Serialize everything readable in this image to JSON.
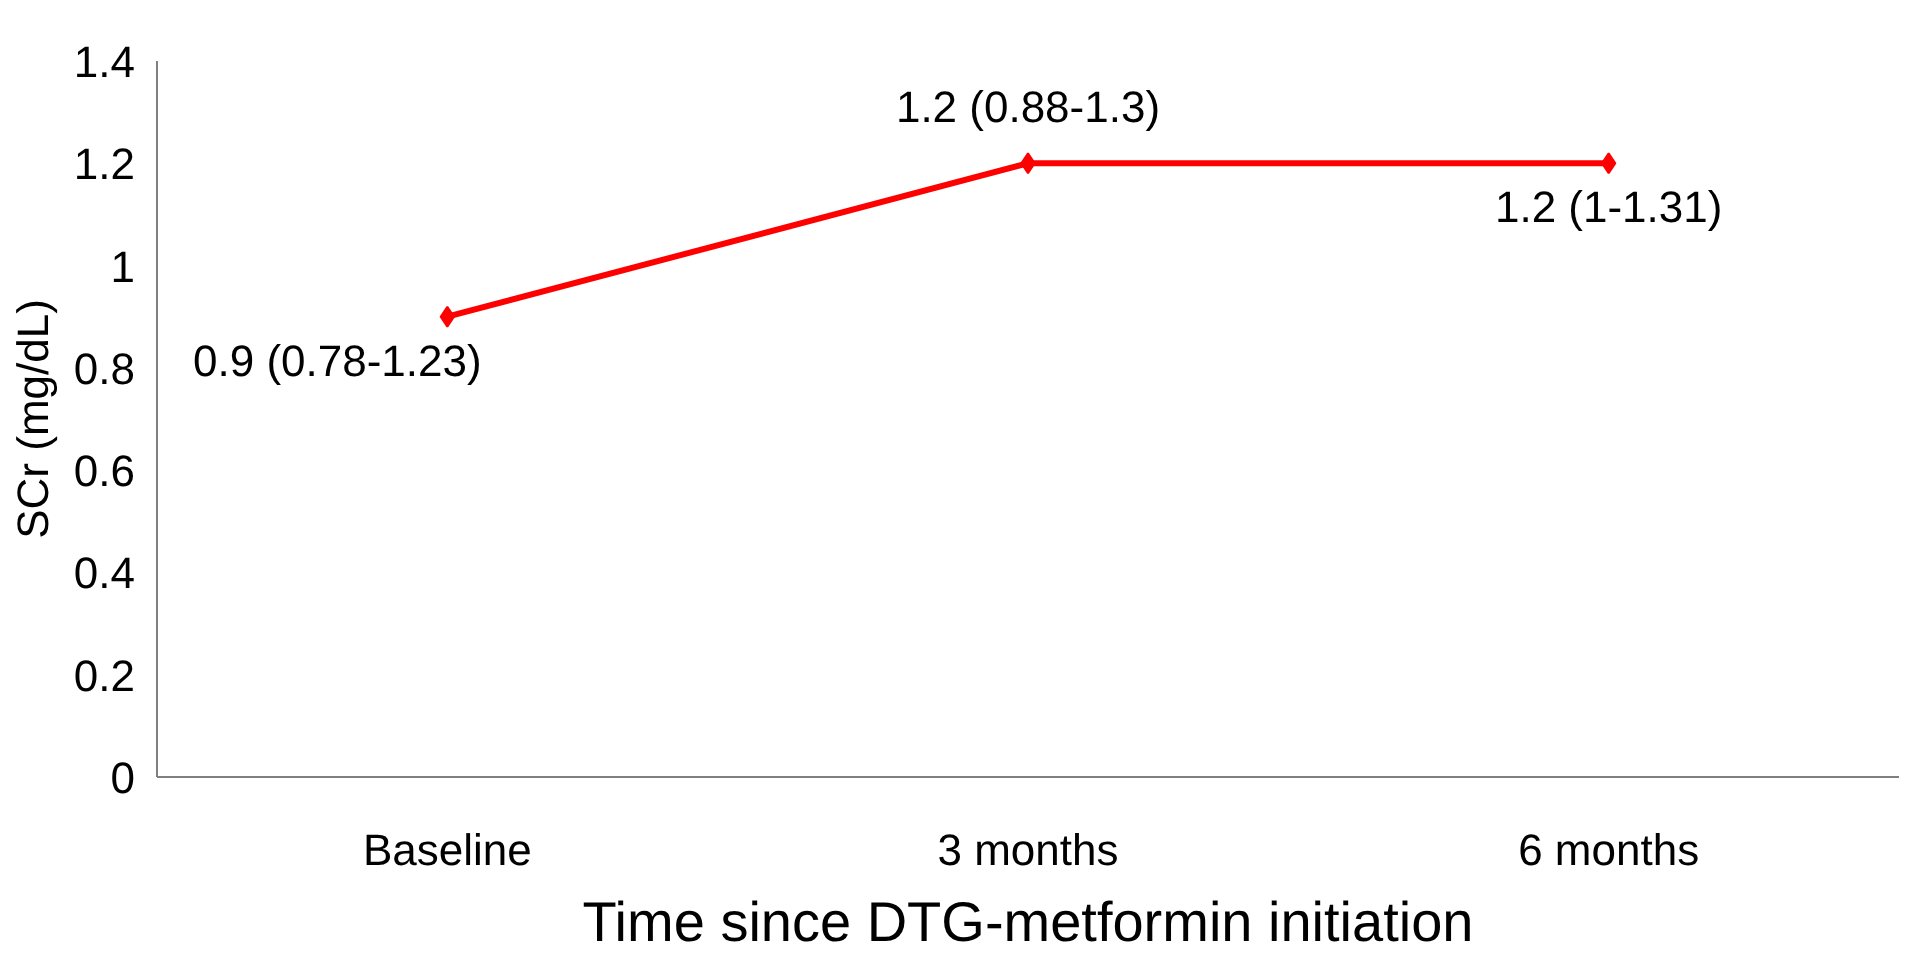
{
  "chart_data": {
    "type": "line",
    "xlabel": "Time since DTG-metformin initiation",
    "ylabel": "SCr (mg/dL)",
    "categories": [
      "Baseline",
      "3 months",
      "6 months"
    ],
    "series": [
      {
        "color": "#ff0000",
        "values": [
          0.9,
          1.2,
          1.2
        ],
        "value_labels": [
          "0.9 (0.78-1.23)",
          "1.2 (0.88-1.3)",
          "1.2 (1-1.31)"
        ]
      }
    ],
    "ylim": [
      0,
      1.4
    ],
    "yticks": [
      0,
      0.2,
      0.4,
      0.6,
      0.8,
      1,
      1.2,
      1.4
    ],
    "grid": false,
    "marker": "diamond",
    "line_style": "solid"
  }
}
